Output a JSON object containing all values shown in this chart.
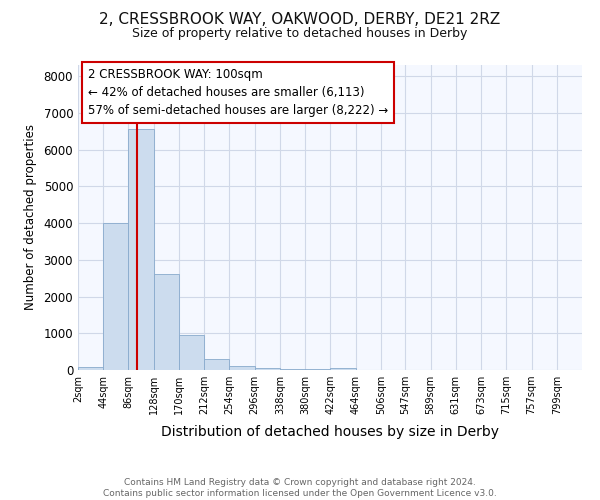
{
  "title_line1": "2, CRESSBROOK WAY, OAKWOOD, DERBY, DE21 2RZ",
  "title_line2": "Size of property relative to detached houses in Derby",
  "xlabel": "Distribution of detached houses by size in Derby",
  "ylabel": "Number of detached properties",
  "bar_edges": [
    2,
    44,
    86,
    128,
    170,
    212,
    254,
    296,
    338,
    380,
    422,
    464,
    506,
    547,
    589,
    631,
    673,
    715,
    757,
    799,
    841
  ],
  "bar_heights": [
    80,
    4000,
    6550,
    2600,
    950,
    300,
    120,
    50,
    30,
    15,
    50,
    0,
    0,
    0,
    0,
    0,
    0,
    0,
    0,
    0
  ],
  "bar_color": "#ccdcee",
  "bar_edge_color": "#88aacc",
  "vline_x": 100,
  "vline_color": "#cc0000",
  "ylim": [
    0,
    8300
  ],
  "yticks": [
    0,
    1000,
    2000,
    3000,
    4000,
    5000,
    6000,
    7000,
    8000
  ],
  "annotation_text": "2 CRESSBROOK WAY: 100sqm\n← 42% of detached houses are smaller (6,113)\n57% of semi-detached houses are larger (8,222) →",
  "annotation_box_color": "#ffffff",
  "annotation_box_edge": "#cc0000",
  "footnote": "Contains HM Land Registry data © Crown copyright and database right 2024.\nContains public sector information licensed under the Open Government Licence v3.0.",
  "background_color": "#f5f8ff",
  "grid_color": "#d0d8e8"
}
